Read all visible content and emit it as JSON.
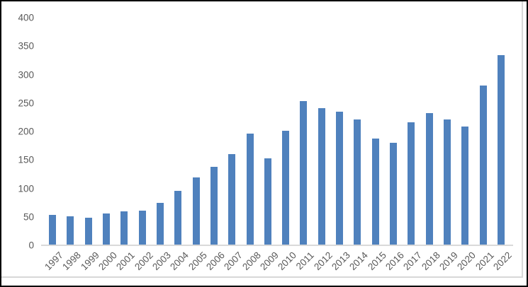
{
  "chart_data": {
    "type": "bar",
    "title": "",
    "xlabel": "",
    "ylabel": "",
    "categories": [
      "1997",
      "1998",
      "1999",
      "2000",
      "2001",
      "2002",
      "2003",
      "2004",
      "2005",
      "2006",
      "2007",
      "2008",
      "2009",
      "2010",
      "2011",
      "2012",
      "2013",
      "2014",
      "2015",
      "2016",
      "2017",
      "2018",
      "2019",
      "2020",
      "2021",
      "2022"
    ],
    "values": [
      52,
      50,
      47,
      55,
      58,
      60,
      73,
      94,
      118,
      137,
      159,
      195,
      151,
      200,
      252,
      240,
      233,
      220,
      186,
      179,
      215,
      231,
      220,
      208,
      280,
      333
    ],
    "y_ticks": [
      0,
      50,
      100,
      150,
      200,
      250,
      300,
      350,
      400
    ],
    "ylim": [
      0,
      400
    ],
    "grid": false,
    "legend_position": "none",
    "bar_color": "#4F81BD",
    "axis_color": "#D9D9D9",
    "tick_label_color": "#595959",
    "background_color": "#FFFFFF",
    "frame_border_color": "#000000"
  }
}
